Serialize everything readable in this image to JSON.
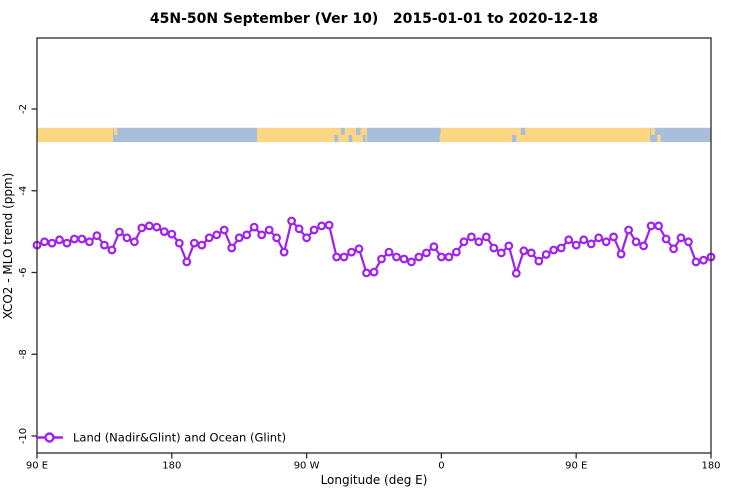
{
  "title": "45N-50N September (Ver 10)   2015-01-01 to 2020-12-18",
  "axes": {
    "x_label": "Longitude (deg E)",
    "y_label": "XCO2 - MLO trend (ppm)",
    "x_ticks": [
      {
        "deg": 90,
        "label": "90 E"
      },
      {
        "deg": 180,
        "label": "180"
      },
      {
        "deg": 270,
        "label": "90 W"
      },
      {
        "deg": 360,
        "label": "0"
      },
      {
        "deg": 450,
        "label": "90 E"
      },
      {
        "deg": 540,
        "label": "180"
      }
    ],
    "y_ticks": [
      {
        "value": -2,
        "label": "-2"
      },
      {
        "value": -4,
        "label": "-4"
      },
      {
        "value": -6,
        "label": "-6"
      },
      {
        "value": -8,
        "label": "-8"
      },
      {
        "value": -10,
        "label": "-10"
      }
    ]
  },
  "legend": {
    "label": "Land (Nadir&Glint) and Ocean (Glint)"
  },
  "colors": {
    "series": "#A020F0",
    "land": "#FCD682",
    "ocean": "#A9BEDB",
    "axis": "#2b2b2b"
  },
  "chart_data": {
    "type": "line",
    "title": "45N-50N September (Ver 10)  2015-01-01 to 2020-12-18",
    "xlabel": "Longitude (deg E)",
    "ylabel": "XCO2 - MLO trend (ppm)",
    "x_start_deg_east": 90,
    "x_step_deg": 5,
    "x_unwrapped_range": [
      90,
      540
    ],
    "x_tick_labels": [
      "90 E",
      "180",
      "90 W",
      "0",
      "90 E",
      "180"
    ],
    "ylim": [
      -10.4,
      -0.3
    ],
    "grid": false,
    "legend_position": "bottom-left",
    "series": [
      {
        "name": "Land (Nadir&Glint) and Ocean (Glint)",
        "marker": "open-circle",
        "color": "#A020F0",
        "values": [
          -5.33,
          -5.25,
          -5.28,
          -5.2,
          -5.28,
          -5.18,
          -5.18,
          -5.25,
          -5.1,
          -5.33,
          -5.45,
          -5.01,
          -5.15,
          -5.25,
          -4.91,
          -4.86,
          -4.89,
          -5.0,
          -5.06,
          -5.28,
          -5.74,
          -5.28,
          -5.33,
          -5.15,
          -5.08,
          -4.96,
          -5.4,
          -5.15,
          -5.08,
          -4.89,
          -5.08,
          -4.96,
          -5.15,
          -5.5,
          -4.74,
          -4.93,
          -5.15,
          -4.96,
          -4.86,
          -4.84,
          -5.62,
          -5.62,
          -5.5,
          -5.42,
          -6.01,
          -5.99,
          -5.67,
          -5.5,
          -5.62,
          -5.67,
          -5.74,
          -5.62,
          -5.52,
          -5.37,
          -5.62,
          -5.62,
          -5.5,
          -5.25,
          -5.13,
          -5.25,
          -5.13,
          -5.4,
          -5.52,
          -5.35,
          -6.02,
          -5.47,
          -5.52,
          -5.72,
          -5.56,
          -5.45,
          -5.4,
          -5.2,
          -5.33,
          -5.2,
          -5.3,
          -5.15,
          -5.25,
          -5.13,
          -5.55,
          -4.96,
          -5.25,
          -5.35,
          -4.86,
          -4.86,
          -5.18,
          -5.42,
          -5.15,
          -5.25,
          -5.74,
          -5.7,
          -5.62
        ]
      }
    ],
    "surface_band": {
      "top_value": -2.46,
      "bottom_value": -2.81,
      "segments": [
        {
          "surface": "land",
          "from_deg": 90,
          "to_deg": 140.7
        },
        {
          "surface": "ocean",
          "from_deg": 140.7,
          "to_deg": 236.9
        },
        {
          "surface": "land",
          "from_deg": 236.9,
          "to_deg": 310.3
        },
        {
          "surface": "ocean",
          "from_deg": 310.3,
          "to_deg": 359.0
        },
        {
          "surface": "land",
          "from_deg": 359.0,
          "to_deg": 499.3
        },
        {
          "surface": "ocean",
          "from_deg": 499.3,
          "to_deg": 540
        }
      ],
      "specks": [
        {
          "surface": "land",
          "from_deg": 141.5,
          "to_deg": 143.5,
          "part": "top"
        },
        {
          "surface": "ocean",
          "from_deg": 288.5,
          "to_deg": 291.0,
          "part": "bottom"
        },
        {
          "surface": "ocean",
          "from_deg": 293.0,
          "to_deg": 295.5,
          "part": "top"
        },
        {
          "surface": "ocean",
          "from_deg": 298.0,
          "to_deg": 300.5,
          "part": "bottom"
        },
        {
          "surface": "ocean",
          "from_deg": 303.0,
          "to_deg": 306.0,
          "part": "top"
        },
        {
          "surface": "ocean",
          "from_deg": 307.5,
          "to_deg": 309.5,
          "part": "bottom"
        },
        {
          "surface": "ocean",
          "from_deg": 357.5,
          "to_deg": 359.5,
          "part": "top"
        },
        {
          "surface": "ocean",
          "from_deg": 407.0,
          "to_deg": 410.0,
          "part": "bottom"
        },
        {
          "surface": "ocean",
          "from_deg": 413.0,
          "to_deg": 416.0,
          "part": "top"
        },
        {
          "surface": "land",
          "from_deg": 500.0,
          "to_deg": 502.5,
          "part": "top"
        },
        {
          "surface": "land",
          "from_deg": 504.0,
          "to_deg": 506.5,
          "part": "bottom"
        }
      ]
    }
  }
}
